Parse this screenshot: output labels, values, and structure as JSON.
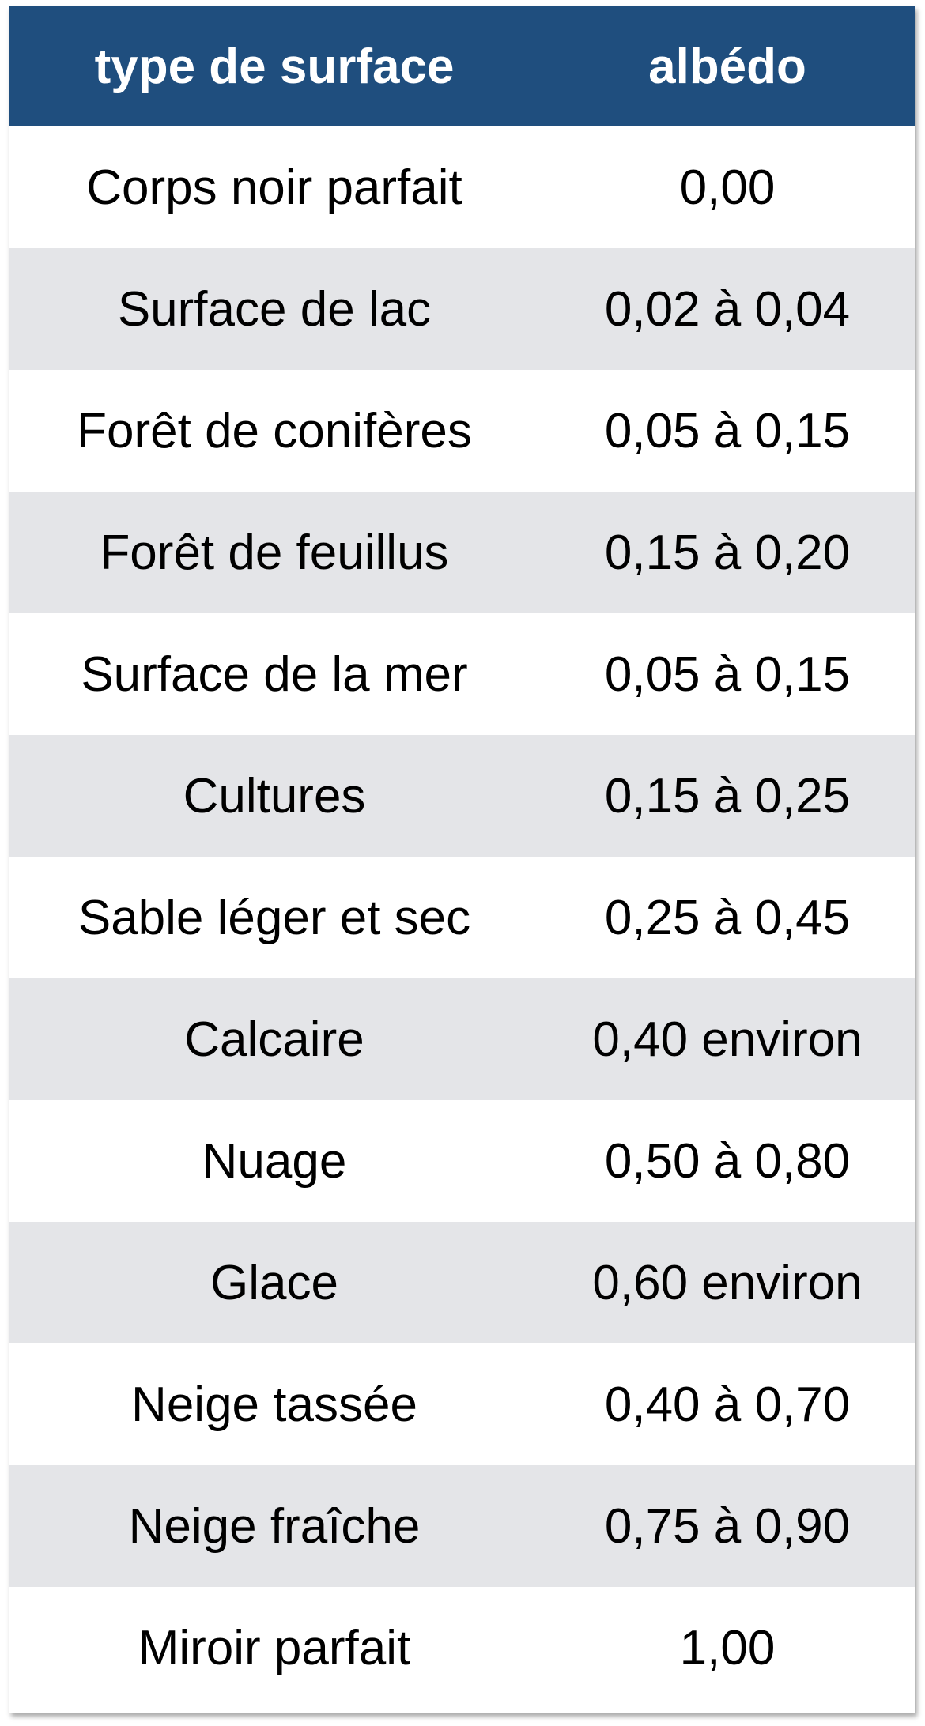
{
  "header": {
    "col_surface": "type de surface",
    "col_albedo": "albédo"
  },
  "rows": [
    {
      "surface": "Corps noir parfait",
      "albedo": "0,00"
    },
    {
      "surface": "Surface de lac",
      "albedo": "0,02 à 0,04"
    },
    {
      "surface": "Forêt de conifères",
      "albedo": "0,05 à 0,15"
    },
    {
      "surface": "Forêt de feuillus",
      "albedo": "0,15 à 0,20"
    },
    {
      "surface": "Surface de la mer",
      "albedo": "0,05 à 0,15"
    },
    {
      "surface": "Cultures",
      "albedo": "0,15 à 0,25"
    },
    {
      "surface": "Sable léger et sec",
      "albedo": "0,25 à 0,45"
    },
    {
      "surface": "Calcaire",
      "albedo": "0,40 environ"
    },
    {
      "surface": "Nuage",
      "albedo": "0,50 à 0,80"
    },
    {
      "surface": "Glace",
      "albedo": "0,60 environ"
    },
    {
      "surface": "Neige tassée",
      "albedo": "0,40 à 0,70"
    },
    {
      "surface": "Neige fraîche",
      "albedo": "0,75 à 0,90"
    },
    {
      "surface": "Miroir parfait",
      "albedo": "1,00"
    }
  ],
  "colors": {
    "header_bg": "#1f4e7e",
    "header_text": "#ffffff",
    "row_alt_bg": "#e4e5e8",
    "row_bg": "#ffffff"
  }
}
